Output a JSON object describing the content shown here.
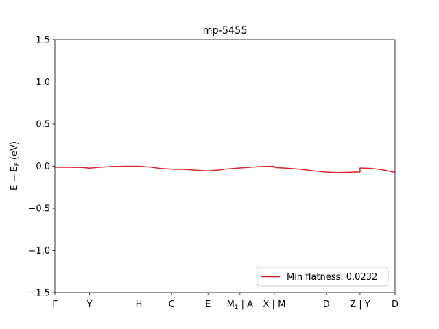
{
  "chart_data": {
    "type": "line",
    "title": "mp-5455",
    "ylabel": "E − E_F (eV)",
    "ylim": [
      -1.5,
      1.5
    ],
    "yticks": [
      {
        "value": 1.5,
        "label": "1.5"
      },
      {
        "value": 1.0,
        "label": "1.0"
      },
      {
        "value": 0.5,
        "label": "0.5"
      },
      {
        "value": 0.0,
        "label": "0.0"
      },
      {
        "value": -0.5,
        "label": "−0.5"
      },
      {
        "value": -1.0,
        "label": "−1.0"
      },
      {
        "value": -1.5,
        "label": "−1.5"
      }
    ],
    "xlim": [
      0,
      10.0
    ],
    "xticks": [
      {
        "value": 0.0,
        "label": "Γ"
      },
      {
        "value": 1.02,
        "label": "Y"
      },
      {
        "value": 2.47,
        "label": "H"
      },
      {
        "value": 3.43,
        "label": "C"
      },
      {
        "value": 4.5,
        "label": "E"
      },
      {
        "value": 5.44,
        "label": "M₁ | A"
      },
      {
        "value": 6.45,
        "label": "X | M"
      },
      {
        "value": 7.98,
        "label": "D"
      },
      {
        "value": 8.97,
        "label": "Z | Y"
      },
      {
        "value": 10.0,
        "label": "D"
      }
    ],
    "series": [
      {
        "name": "Min flatness: 0.0232",
        "color": "#d62728",
        "x": [
          0.0,
          0.4,
          0.8,
          1.02,
          1.3,
          1.7,
          2.1,
          2.47,
          2.8,
          3.1,
          3.43,
          3.8,
          4.2,
          4.5,
          4.8,
          5.1,
          5.44,
          5.8,
          6.1,
          6.45,
          6.45,
          6.8,
          7.2,
          7.6,
          7.98,
          8.3,
          8.6,
          8.95,
          8.97,
          8.97,
          9.3,
          9.6,
          10.0
        ],
        "y": [
          -0.012,
          -0.012,
          -0.014,
          -0.022,
          -0.012,
          -0.003,
          0.0,
          0.0,
          -0.01,
          -0.025,
          -0.035,
          -0.038,
          -0.048,
          -0.055,
          -0.045,
          -0.03,
          -0.02,
          -0.01,
          -0.003,
          0.0,
          -0.015,
          -0.022,
          -0.035,
          -0.055,
          -0.07,
          -0.075,
          -0.072,
          -0.068,
          -0.068,
          -0.02,
          -0.025,
          -0.04,
          -0.072
        ]
      }
    ],
    "legend": {
      "placement": "lower-right",
      "label": "Min flatness: 0.0232"
    },
    "grid": false
  }
}
